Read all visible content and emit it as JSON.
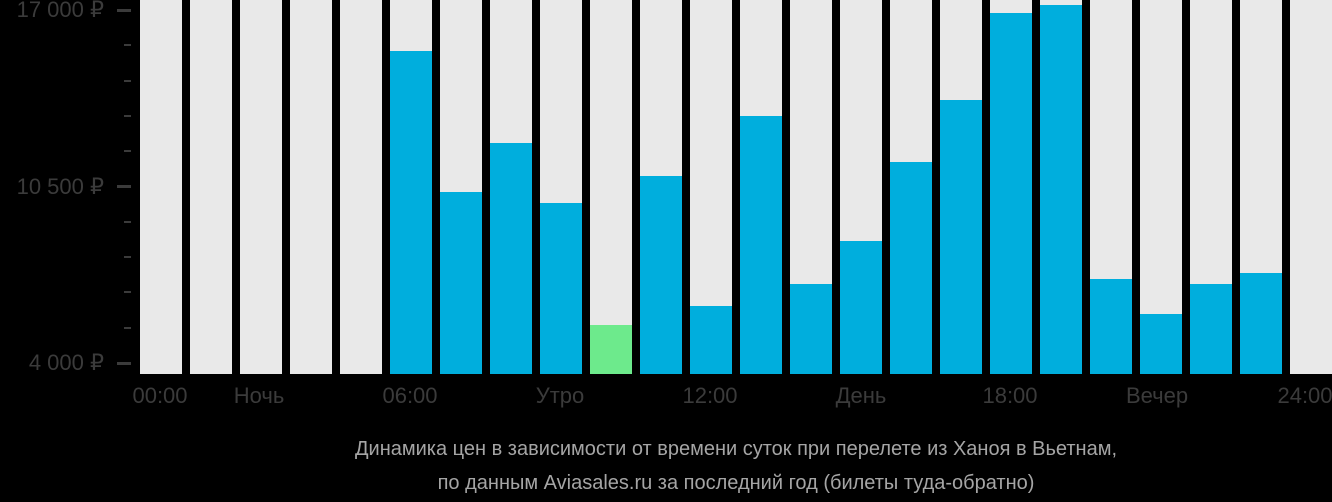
{
  "chart_data": {
    "type": "bar",
    "title": "Динамика цен в зависимости от времени суток при перелете из Ханоя в Вьетнам, по данным Aviasales.ru за последний год (билеты туда-обратно)",
    "categories": [
      "00:00",
      "01:00",
      "02:00",
      "03:00",
      "04:00",
      "05:00",
      "06:00",
      "07:00",
      "08:00",
      "09:00",
      "10:00",
      "11:00",
      "12:00",
      "13:00",
      "14:00",
      "15:00",
      "16:00",
      "17:00",
      "18:00",
      "19:00",
      "20:00",
      "21:00",
      "22:00",
      "23:00"
    ],
    "values": [
      null,
      null,
      null,
      null,
      null,
      15500,
      10300,
      12100,
      9900,
      5400,
      10900,
      6100,
      13100,
      6900,
      8500,
      11400,
      13700,
      16900,
      17200,
      7100,
      5800,
      6900,
      7300,
      null
    ],
    "lowest_price_index": 9,
    "y_ticks": [
      {
        "label": "17 000 ₽",
        "value": 17000
      },
      {
        "label": "10 500 ₽",
        "value": 10500
      },
      {
        "label": "4 000 ₽",
        "value": 4000
      }
    ],
    "y_minor_tick_step": 1300,
    "x_tick_labels": [
      "00:00",
      "Ночь",
      "06:00",
      "Утро",
      "12:00",
      "День",
      "18:00",
      "Вечер",
      "24:00"
    ],
    "grid": false,
    "legend": false,
    "colors": {
      "price_bar": "#00aedd",
      "lowest_price_bar": "#6dea8c",
      "no_data_track": "#e9e9e9",
      "axis_text": "#3b3b3b",
      "caption_text": "#a5a5a5",
      "background": "#000000"
    }
  },
  "caption": {
    "line1": "Динамика цен в зависимости от времени суток при перелете из Ханоя в Вьетнам,",
    "line2": "по данным Aviasales.ru за последний год (билеты туда-обратно)"
  }
}
